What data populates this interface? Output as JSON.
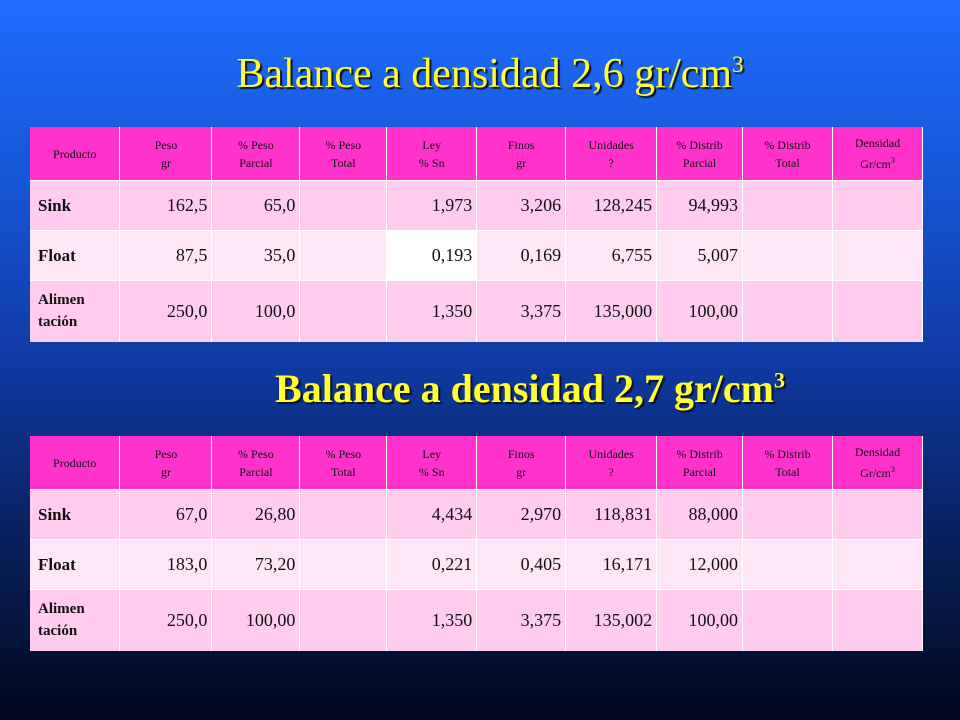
{
  "slide": {
    "title1": "Balance a densidad 2,6 gr/cm",
    "title1_sup": "3",
    "title2": "Balance a densidad 2,7 gr/cm",
    "title2_sup": "3"
  },
  "headers": [
    [
      "Producto"
    ],
    [
      "Peso",
      "gr"
    ],
    [
      "% Peso",
      "Parcial"
    ],
    [
      "% Peso",
      "Total"
    ],
    [
      "Ley",
      "% Sn"
    ],
    [
      "Finos",
      "gr"
    ],
    [
      "Unidades",
      "?"
    ],
    [
      "% Distrib",
      "Parcial"
    ],
    [
      "% Distrib",
      "Total"
    ],
    [
      "Densidad",
      "Gr/cm"
    ]
  ],
  "density_sup": "3",
  "table1": {
    "rows": [
      {
        "producto": "Sink",
        "peso": "162,5",
        "peso_parcial": "65,0",
        "peso_total": "",
        "ley": "1,973",
        "finos": "3,206",
        "unidades": "128,245",
        "dist_parcial": "94,993",
        "dist_total": "",
        "densidad": ""
      },
      {
        "producto": "Float",
        "peso": "87,5",
        "peso_parcial": "35,0",
        "peso_total": "",
        "ley": "0,193",
        "finos": "0,169",
        "unidades": "6,755",
        "dist_parcial": "5,007",
        "dist_total": "",
        "densidad": ""
      },
      {
        "producto": "Alimen tación",
        "producto_l1": "Alimen",
        "producto_l2": "tación",
        "peso": "250,0",
        "peso_parcial": "100,0",
        "peso_total": "",
        "ley": "1,350",
        "finos": "3,375",
        "unidades": "135,000",
        "dist_parcial": "100,00",
        "dist_total": "",
        "densidad": ""
      }
    ]
  },
  "table2": {
    "rows": [
      {
        "producto": "Sink",
        "peso": "67,0",
        "peso_parcial": "26,80",
        "peso_total": "",
        "ley": "4,434",
        "finos": "2,970",
        "unidades": "118,831",
        "dist_parcial": "88,000",
        "dist_total": "",
        "densidad": ""
      },
      {
        "producto": "Float",
        "peso": "183,0",
        "peso_parcial": "73,20",
        "peso_total": "",
        "ley": "0,221",
        "finos": "0,405",
        "unidades": "16,171",
        "dist_parcial": "12,000",
        "dist_total": "",
        "densidad": ""
      },
      {
        "producto": "Alimen tación",
        "producto_l1": "Alimen",
        "producto_l2": "tación",
        "peso": "250,0",
        "peso_parcial": "100,00",
        "peso_total": "",
        "ley": "1,350",
        "finos": "3,375",
        "unidades": "135,002",
        "dist_parcial": "100,00",
        "dist_total": "",
        "densidad": ""
      }
    ]
  }
}
